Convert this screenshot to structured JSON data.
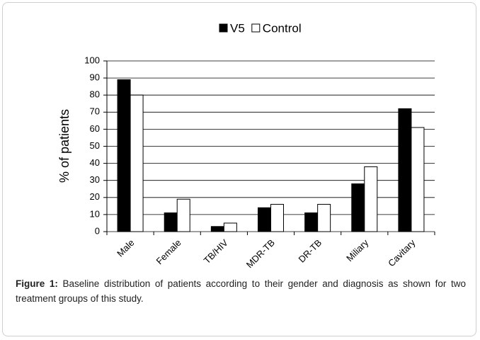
{
  "chart_data": {
    "type": "bar",
    "categories": [
      "Male",
      "Female",
      "TB/HIV",
      "MDR-TB",
      "DR-TB",
      "Miliary",
      "Cavitary"
    ],
    "series": [
      {
        "name": "V5",
        "color": "#000000",
        "values": [
          89,
          11,
          3,
          14,
          11,
          28,
          72
        ]
      },
      {
        "name": "Control",
        "color": "#ffffff",
        "values": [
          80,
          19,
          5,
          16,
          16,
          38,
          61
        ]
      }
    ],
    "ylabel": "% of patients",
    "ylim": [
      0,
      100
    ],
    "yticks": [
      0,
      10,
      20,
      30,
      40,
      50,
      60,
      70,
      80,
      90,
      100
    ],
    "grid": true,
    "legend": "top"
  },
  "caption": {
    "label": "Figure 1:",
    "text": "Baseline distribution of patients according to their gender and diagnosis as shown for two treatment groups of this study."
  }
}
